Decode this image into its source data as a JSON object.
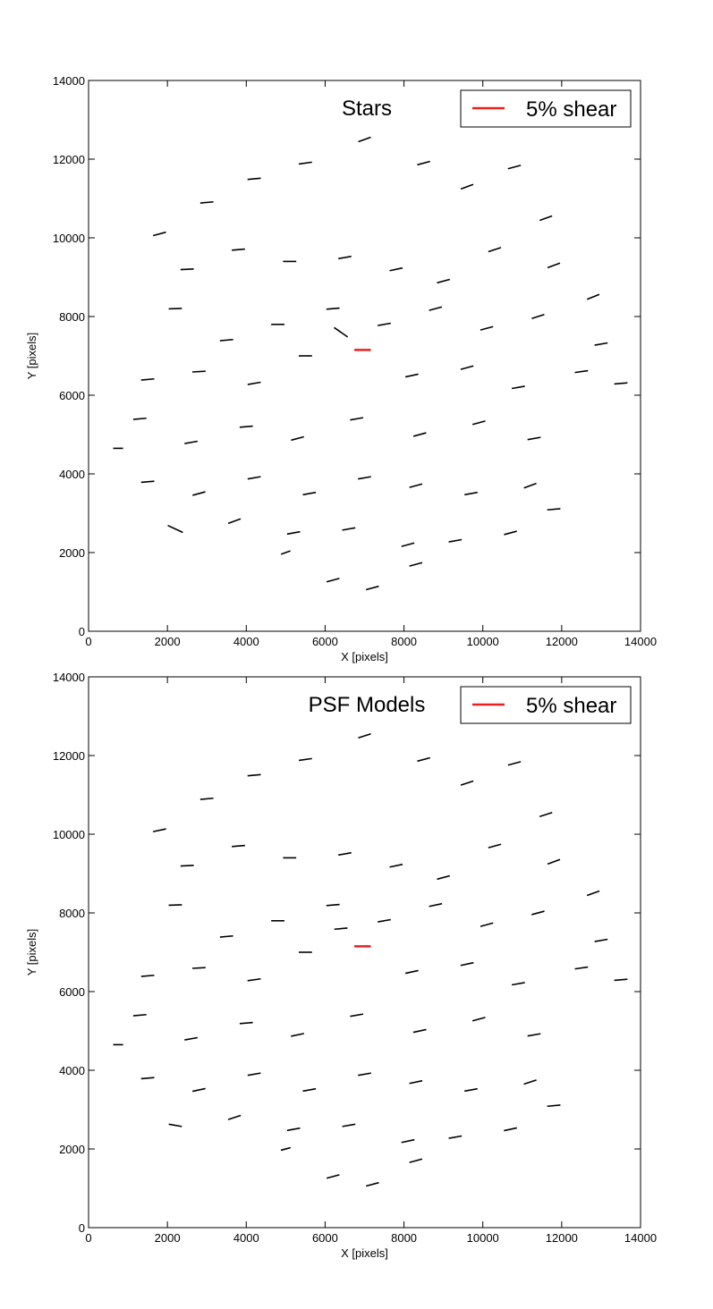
{
  "chart_data": [
    {
      "type": "whisker",
      "title": "Stars",
      "xlabel": "X [pixels]",
      "ylabel": "Y [pixels]",
      "xlim": [
        0,
        14000
      ],
      "ylim": [
        0,
        14000
      ],
      "xticks": [
        0,
        2000,
        4000,
        6000,
        8000,
        10000,
        12000,
        14000
      ],
      "yticks": [
        0,
        2000,
        4000,
        6000,
        8000,
        10000,
        12000,
        14000
      ],
      "legend": "upper right",
      "key": {
        "label": "5% shear",
        "value": 5,
        "x": 6950,
        "y": 7150,
        "color": "#e8211f"
      },
      "series": [
        {
          "color": "#000000",
          "x": [
            1800,
            3000,
            4200,
            5500,
            7000,
            8500,
            9600,
            10800,
            11600,
            2500,
            3800,
            5100,
            6500,
            7800,
            9000,
            10300,
            11800,
            12800,
            2200,
            3500,
            4800,
            6200,
            7500,
            8800,
            10100,
            11400,
            13000,
            1500,
            2800,
            4200,
            5500,
            8200,
            9600,
            10900,
            12500,
            13500,
            1300,
            2600,
            4000,
            5300,
            6800,
            8400,
            9900,
            11300,
            750,
            1500,
            2800,
            4200,
            5600,
            7000,
            8300,
            9700,
            11200,
            2200,
            3700,
            5200,
            6600,
            8100,
            9300,
            10700,
            6200,
            7200,
            8300,
            5000,
            11800,
            6400
          ],
          "y": [
            10100,
            10900,
            11500,
            11900,
            12500,
            11900,
            11300,
            11800,
            10500,
            9200,
            9700,
            9400,
            9500,
            9200,
            8900,
            9700,
            9300,
            8500,
            8200,
            7400,
            7800,
            8200,
            7800,
            8200,
            7700,
            8000,
            7300,
            6400,
            6600,
            6300,
            7000,
            6500,
            6700,
            6200,
            6600,
            6300,
            5400,
            4800,
            5200,
            4900,
            5400,
            5000,
            5300,
            4900,
            4650,
            3800,
            3500,
            3900,
            3500,
            3900,
            3700,
            3500,
            3700,
            2600,
            2800,
            2500,
            2600,
            2200,
            2300,
            2500,
            1300,
            1100,
            1700,
            2000,
            3100,
            7600
          ],
          "e": [
            4,
            4,
            4,
            4,
            4,
            4,
            4,
            4,
            4,
            4,
            4,
            4,
            4,
            4,
            4,
            4,
            4,
            4,
            4,
            4,
            4,
            4,
            4,
            4,
            4,
            4,
            4,
            4,
            4,
            4,
            4,
            4,
            4,
            4,
            4,
            4,
            4,
            4,
            4,
            4,
            4,
            4,
            4,
            4,
            3,
            4,
            4,
            4,
            4,
            4,
            4,
            4,
            4,
            5,
            4,
            4,
            4,
            4,
            4,
            4,
            4,
            4,
            4,
            3,
            4,
            5
          ],
          "angle": [
            15,
            5,
            5,
            8,
            20,
            15,
            20,
            15,
            20,
            3,
            5,
            0,
            10,
            12,
            15,
            18,
            20,
            22,
            2,
            5,
            0,
            5,
            10,
            15,
            15,
            18,
            10,
            5,
            3,
            10,
            0,
            12,
            15,
            10,
            8,
            5,
            5,
            10,
            5,
            15,
            10,
            15,
            15,
            10,
            0,
            5,
            15,
            10,
            10,
            10,
            15,
            10,
            20,
            -25,
            20,
            10,
            10,
            15,
            10,
            15,
            15,
            15,
            15,
            20,
            5,
            -35
          ]
        }
      ]
    },
    {
      "type": "whisker",
      "title": "PSF Models",
      "xlabel": "X [pixels]",
      "ylabel": "Y [pixels]",
      "xlim": [
        0,
        14000
      ],
      "ylim": [
        0,
        14000
      ],
      "xticks": [
        0,
        2000,
        4000,
        6000,
        8000,
        10000,
        12000,
        14000
      ],
      "yticks": [
        0,
        2000,
        4000,
        6000,
        8000,
        10000,
        12000,
        14000
      ],
      "legend": "upper right",
      "key": {
        "label": "5% shear",
        "value": 5,
        "x": 6950,
        "y": 7150,
        "color": "#e8211f"
      },
      "series": [
        {
          "color": "#000000",
          "x": [
            1800,
            3000,
            4200,
            5500,
            7000,
            8500,
            9600,
            10800,
            11600,
            2500,
            3800,
            5100,
            6500,
            7800,
            9000,
            10300,
            11800,
            12800,
            2200,
            3500,
            4800,
            6200,
            7500,
            8800,
            10100,
            11400,
            13000,
            1500,
            2800,
            4200,
            5500,
            8200,
            9600,
            10900,
            12500,
            13500,
            1300,
            2600,
            4000,
            5300,
            6800,
            8400,
            9900,
            11300,
            750,
            1500,
            2800,
            4200,
            5600,
            7000,
            8300,
            9700,
            11200,
            2200,
            3700,
            5200,
            6600,
            8100,
            9300,
            10700,
            6200,
            7200,
            8300,
            5000,
            11800,
            6400
          ],
          "y": [
            10100,
            10900,
            11500,
            11900,
            12500,
            11900,
            11300,
            11800,
            10500,
            9200,
            9700,
            9400,
            9500,
            9200,
            8900,
            9700,
            9300,
            8500,
            8200,
            7400,
            7800,
            8200,
            7800,
            8200,
            7700,
            8000,
            7300,
            6400,
            6600,
            6300,
            7000,
            6500,
            6700,
            6200,
            6600,
            6300,
            5400,
            4800,
            5200,
            4900,
            5400,
            5000,
            5300,
            4900,
            4650,
            3800,
            3500,
            3900,
            3500,
            3900,
            3700,
            3500,
            3700,
            2600,
            2800,
            2500,
            2600,
            2200,
            2300,
            2500,
            1300,
            1100,
            1700,
            2000,
            3100,
            7600
          ],
          "e": [
            4,
            4,
            4,
            4,
            4,
            4,
            4,
            4,
            4,
            4,
            4,
            4,
            4,
            4,
            4,
            4,
            4,
            4,
            4,
            4,
            4,
            4,
            4,
            4,
            4,
            4,
            4,
            4,
            4,
            4,
            4,
            4,
            4,
            4,
            4,
            4,
            4,
            4,
            4,
            4,
            4,
            4,
            4,
            4,
            3,
            4,
            4,
            4,
            4,
            4,
            4,
            4,
            4,
            4,
            4,
            4,
            4,
            4,
            4,
            4,
            4,
            4,
            4,
            3,
            4,
            4
          ],
          "angle": [
            12,
            5,
            5,
            8,
            18,
            15,
            18,
            15,
            18,
            3,
            5,
            0,
            10,
            12,
            15,
            15,
            20,
            20,
            2,
            5,
            0,
            5,
            10,
            12,
            15,
            15,
            10,
            5,
            3,
            8,
            0,
            12,
            12,
            10,
            8,
            5,
            5,
            10,
            5,
            12,
            10,
            12,
            15,
            10,
            0,
            5,
            12,
            10,
            10,
            10,
            12,
            10,
            18,
            -10,
            18,
            10,
            10,
            12,
            10,
            12,
            15,
            15,
            15,
            15,
            5,
            5
          ]
        }
      ]
    }
  ]
}
